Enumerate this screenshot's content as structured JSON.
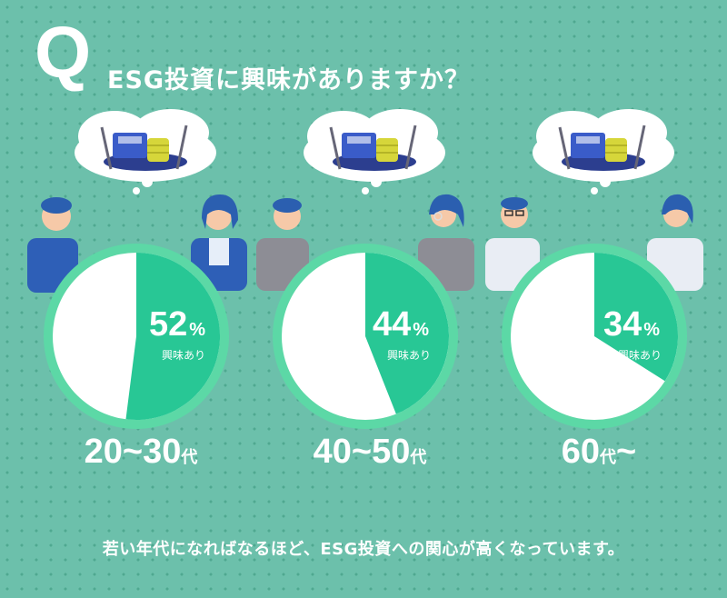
{
  "header": {
    "q_mark": "Q",
    "question": "ESG投資に興味がありますか？"
  },
  "chart_data": {
    "type": "pie",
    "categories": [
      "20~30代",
      "40~50代",
      "60代~"
    ],
    "series": [
      {
        "name": "興味あり",
        "values": [
          52,
          44,
          34
        ]
      }
    ],
    "colors": {
      "interested": "#28c795",
      "other": "#ffffff",
      "ring": "#5cd8a6"
    }
  },
  "panels": [
    {
      "pct": "52",
      "pct_sym": "%",
      "label": "興味あり",
      "age_main": "20~30",
      "age_suffix": "代",
      "age_tail": ""
    },
    {
      "pct": "44",
      "pct_sym": "%",
      "label": "興味あり",
      "age_main": "40~50",
      "age_suffix": "代",
      "age_tail": ""
    },
    {
      "pct": "34",
      "pct_sym": "%",
      "label": "興味あり",
      "age_main": "60",
      "age_suffix": "代",
      "age_tail": "~"
    }
  ],
  "footer": {
    "text": "若い年代になればなるほど、ESG投資への関心が高くなっています。"
  }
}
